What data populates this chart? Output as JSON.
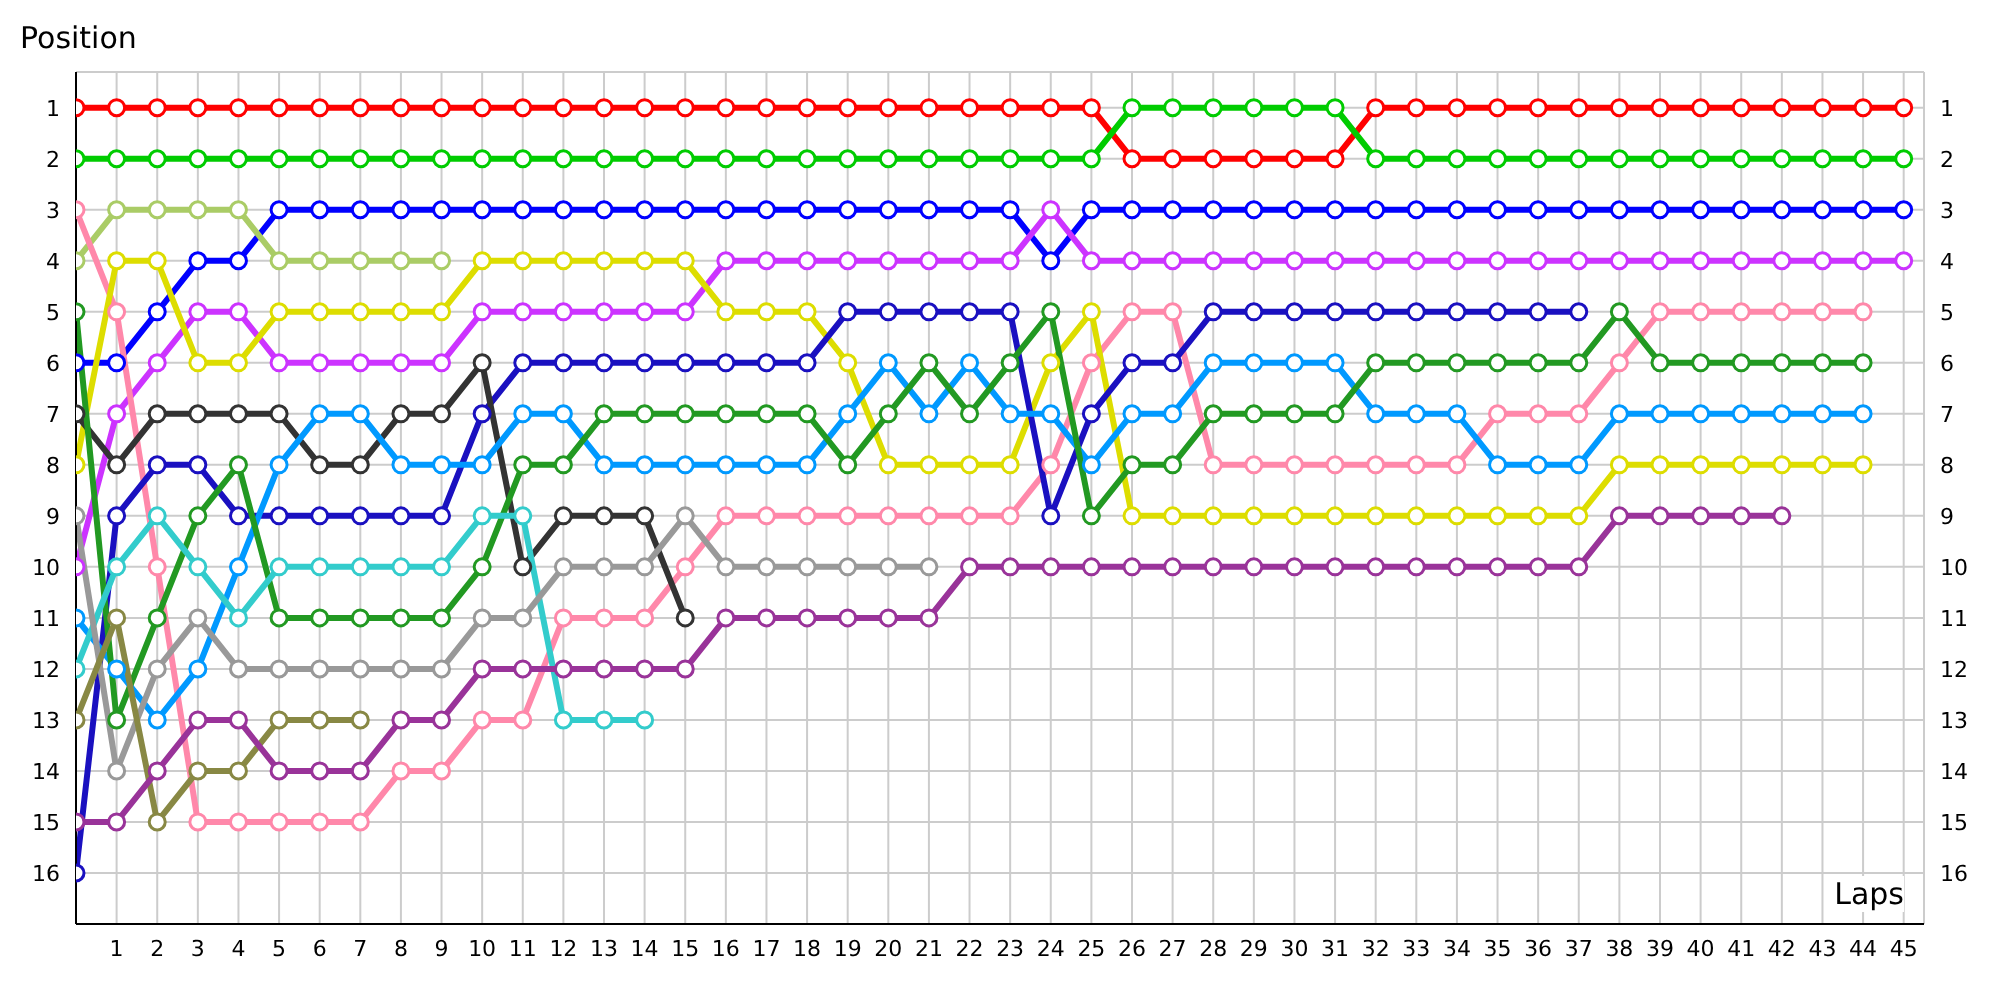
{
  "chart_data": {
    "type": "line",
    "xlabel": "Laps",
    "ylabel": "Position",
    "x": [
      0,
      1,
      2,
      3,
      4,
      5,
      6,
      7,
      8,
      9,
      10,
      11,
      12,
      13,
      14,
      15,
      16,
      17,
      18,
      19,
      20,
      21,
      22,
      23,
      24,
      25,
      26,
      27,
      28,
      29,
      30,
      31,
      32,
      33,
      34,
      35,
      36,
      37,
      38,
      39,
      40,
      41,
      42,
      43,
      44,
      45
    ],
    "series": [
      {
        "color": "#ff0000",
        "values": [
          1,
          1,
          1,
          1,
          1,
          1,
          1,
          1,
          1,
          1,
          1,
          1,
          1,
          1,
          1,
          1,
          1,
          1,
          1,
          1,
          1,
          1,
          1,
          1,
          1,
          1,
          2,
          2,
          2,
          2,
          2,
          2,
          1,
          1,
          1,
          1,
          1,
          1,
          1,
          1,
          1,
          1,
          1,
          1,
          1,
          1
        ]
      },
      {
        "color": "#00cc00",
        "values": [
          2,
          2,
          2,
          2,
          2,
          2,
          2,
          2,
          2,
          2,
          2,
          2,
          2,
          2,
          2,
          2,
          2,
          2,
          2,
          2,
          2,
          2,
          2,
          2,
          2,
          2,
          1,
          1,
          1,
          1,
          1,
          1,
          2,
          2,
          2,
          2,
          2,
          2,
          2,
          2,
          2,
          2,
          2,
          2,
          2,
          2
        ]
      },
      {
        "color": "#0000ff",
        "values": [
          6,
          6,
          5,
          4,
          4,
          3,
          3,
          3,
          3,
          3,
          3,
          3,
          3,
          3,
          3,
          3,
          3,
          3,
          3,
          3,
          3,
          3,
          3,
          3,
          4,
          3,
          3,
          3,
          3,
          3,
          3,
          3,
          3,
          3,
          3,
          3,
          3,
          3,
          3,
          3,
          3,
          3,
          3,
          3,
          3,
          3
        ]
      },
      {
        "color": "#cc33ff",
        "values": [
          10,
          7,
          6,
          5,
          5,
          6,
          6,
          6,
          6,
          6,
          5,
          5,
          5,
          5,
          5,
          5,
          4,
          4,
          4,
          4,
          4,
          4,
          4,
          4,
          3,
          4,
          4,
          4,
          4,
          4,
          4,
          4,
          4,
          4,
          4,
          4,
          4,
          4,
          4,
          4,
          4,
          4,
          4,
          4,
          4,
          4
        ]
      },
      {
        "color": "#aacc66",
        "values": [
          4,
          3,
          3,
          3,
          3,
          4,
          4,
          4,
          4,
          4,
          null,
          null,
          null,
          null,
          null,
          null,
          null,
          null,
          null,
          null,
          null,
          null,
          null,
          null,
          null,
          null,
          null,
          null,
          null,
          null,
          null,
          null,
          null,
          null,
          null,
          null,
          null,
          null,
          null,
          null,
          null,
          null,
          null,
          null,
          null,
          null
        ]
      },
      {
        "color": "#ff88aa",
        "values": [
          3,
          5,
          10,
          15,
          15,
          15,
          15,
          15,
          14,
          14,
          13,
          13,
          11,
          11,
          11,
          10,
          9,
          9,
          9,
          9,
          9,
          9,
          9,
          9,
          8,
          6,
          5,
          5,
          8,
          8,
          8,
          8,
          8,
          8,
          8,
          7,
          7,
          7,
          6,
          5,
          5,
          5,
          5,
          5,
          5,
          null
        ]
      },
      {
        "color": "#dddd00",
        "values": [
          8,
          4,
          4,
          6,
          6,
          5,
          5,
          5,
          5,
          5,
          4,
          4,
          4,
          4,
          4,
          4,
          5,
          5,
          5,
          6,
          8,
          8,
          8,
          8,
          6,
          5,
          9,
          9,
          9,
          9,
          9,
          9,
          9,
          9,
          9,
          9,
          9,
          9,
          8,
          8,
          8,
          8,
          8,
          8,
          8,
          null
        ]
      },
      {
        "color": "#1a10c0",
        "values": [
          16,
          9,
          8,
          8,
          9,
          9,
          9,
          9,
          9,
          9,
          7,
          6,
          6,
          6,
          6,
          6,
          6,
          6,
          6,
          5,
          5,
          5,
          5,
          5,
          9,
          7,
          6,
          6,
          5,
          5,
          5,
          5,
          5,
          5,
          5,
          5,
          5,
          5,
          null,
          null,
          null,
          null,
          null,
          null,
          null,
          null
        ]
      },
      {
        "color": "#333333",
        "values": [
          7,
          8,
          7,
          7,
          7,
          7,
          8,
          8,
          7,
          7,
          6,
          10,
          9,
          9,
          9,
          11,
          null,
          null,
          null,
          null,
          null,
          null,
          null,
          null,
          null,
          null,
          null,
          null,
          null,
          null,
          null,
          null,
          null,
          null,
          null,
          null,
          null,
          null,
          null,
          null,
          null,
          null,
          null,
          null,
          null,
          null
        ]
      },
      {
        "color": "#0099ff",
        "values": [
          11,
          12,
          13,
          12,
          10,
          8,
          7,
          7,
          8,
          8,
          8,
          7,
          7,
          8,
          8,
          8,
          8,
          8,
          8,
          7,
          6,
          7,
          6,
          7,
          7,
          8,
          7,
          7,
          6,
          6,
          6,
          6,
          7,
          7,
          7,
          8,
          8,
          8,
          7,
          7,
          7,
          7,
          7,
          7,
          7,
          null
        ]
      },
      {
        "color": "#229922",
        "values": [
          5,
          13,
          11,
          9,
          8,
          11,
          11,
          11,
          11,
          11,
          10,
          8,
          8,
          7,
          7,
          7,
          7,
          7,
          7,
          8,
          7,
          6,
          7,
          6,
          5,
          9,
          8,
          8,
          7,
          7,
          7,
          7,
          6,
          6,
          6,
          6,
          6,
          6,
          5,
          6,
          6,
          6,
          6,
          6,
          6,
          null
        ]
      },
      {
        "color": "#33cccc",
        "values": [
          12,
          10,
          9,
          10,
          11,
          10,
          10,
          10,
          10,
          10,
          9,
          9,
          13,
          13,
          13,
          null,
          null,
          null,
          null,
          null,
          null,
          null,
          null,
          null,
          null,
          null,
          null,
          null,
          null,
          null,
          null,
          null,
          null,
          null,
          null,
          null,
          null,
          null,
          null,
          null,
          null,
          null,
          null,
          null,
          null,
          null
        ]
      },
      {
        "color": "#999999",
        "values": [
          9,
          14,
          12,
          11,
          12,
          12,
          12,
          12,
          12,
          12,
          11,
          11,
          10,
          10,
          10,
          9,
          10,
          10,
          10,
          10,
          10,
          10,
          null,
          null,
          null,
          null,
          null,
          null,
          null,
          null,
          null,
          null,
          null,
          null,
          null,
          null,
          null,
          null,
          null,
          null,
          null,
          null,
          null,
          null,
          null,
          null
        ]
      },
      {
        "color": "#888844",
        "values": [
          13,
          11,
          15,
          14,
          14,
          13,
          13,
          13,
          null,
          null,
          null,
          null,
          null,
          null,
          null,
          null,
          null,
          null,
          null,
          null,
          null,
          null,
          null,
          null,
          null,
          null,
          null,
          null,
          null,
          null,
          null,
          null,
          null,
          null,
          null,
          null,
          null,
          null,
          null,
          null,
          null,
          null,
          null,
          null,
          null,
          null
        ]
      },
      {
        "color": "#993399",
        "values": [
          15,
          15,
          14,
          13,
          13,
          14,
          14,
          14,
          13,
          13,
          12,
          12,
          12,
          12,
          12,
          12,
          11,
          11,
          11,
          11,
          11,
          11,
          10,
          10,
          10,
          10,
          10,
          10,
          10,
          10,
          10,
          10,
          10,
          10,
          10,
          10,
          10,
          10,
          9,
          9,
          9,
          9,
          9,
          null,
          null,
          null
        ]
      }
    ],
    "xlim": [
      0,
      45.5
    ],
    "xticks": [
      1,
      2,
      3,
      4,
      5,
      6,
      7,
      8,
      9,
      10,
      11,
      12,
      13,
      14,
      15,
      16,
      17,
      18,
      19,
      20,
      21,
      22,
      23,
      24,
      25,
      26,
      27,
      28,
      29,
      30,
      31,
      32,
      33,
      34,
      35,
      36,
      37,
      38,
      39,
      40,
      41,
      42,
      43,
      44,
      45
    ],
    "ylim": [
      17,
      0.3
    ],
    "yticks": [
      1,
      2,
      3,
      4,
      5,
      6,
      7,
      8,
      9,
      10,
      11,
      12,
      13,
      14,
      15,
      16
    ],
    "y2lim": [
      17,
      0.3
    ],
    "y2ticks": [
      1,
      2,
      3,
      4,
      5,
      6,
      7,
      8,
      9,
      10,
      11,
      12,
      13,
      14,
      15,
      16
    ],
    "grid": true,
    "marker": "circle",
    "line_style": "solid"
  }
}
